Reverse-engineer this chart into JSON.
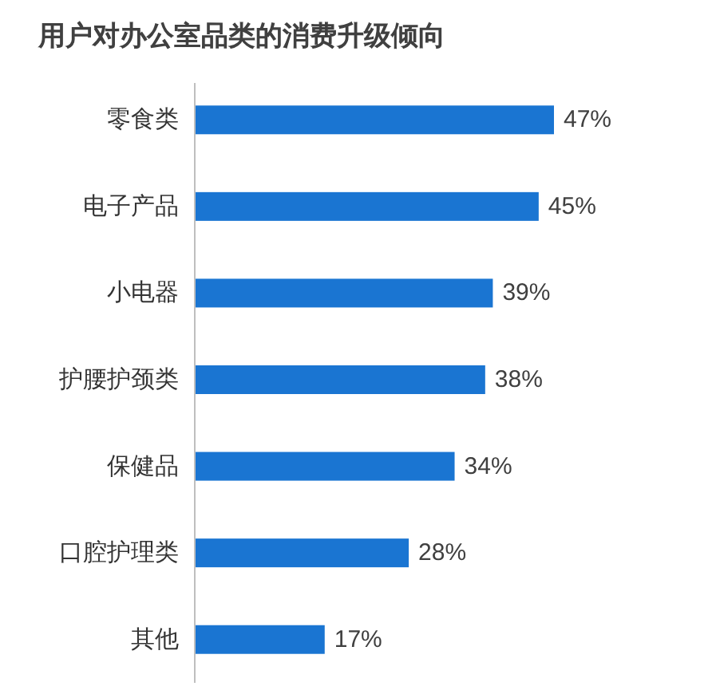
{
  "chart_data": {
    "type": "bar",
    "orientation": "horizontal",
    "title": "用户对办公室品类的消费升级倾向",
    "categories": [
      "零食类",
      "电子产品",
      "小电器",
      "护腰护颈类",
      "保健品",
      "口腔护理类",
      "其他"
    ],
    "values": [
      47,
      45,
      39,
      38,
      34,
      28,
      17
    ],
    "color": "#1a75d2",
    "value_labels": [
      "47%",
      "45%",
      "39%",
      "38%",
      "34%",
      "28%",
      "17%"
    ]
  }
}
